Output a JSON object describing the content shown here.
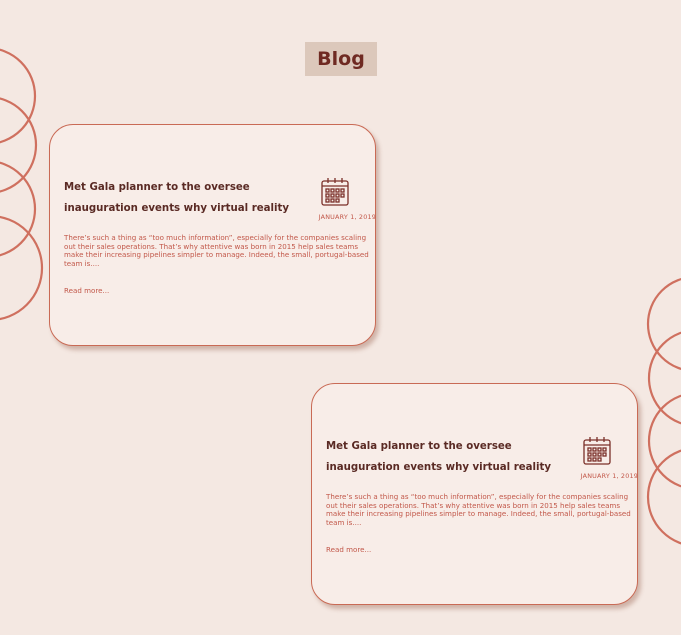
{
  "header": {
    "title": "Blog"
  },
  "posts": [
    {
      "title": "Met Gala planner to the oversee inauguration events why virtual reality",
      "date": "JANUARY 1, 2019",
      "excerpt": "There’s such a thing as “too much information”, especially for the companies scaling out their sales operations. That’s why attentive was born in 2015 help sales teams make their increasing pipelines simpler to manage. Indeed, the small, portugal-based team is....",
      "read_more": "Read more...",
      "icon": "calendar-icon"
    },
    {
      "title": "Met Gala planner to the oversee inauguration events why virtual reality",
      "date": "JANUARY 1, 2019",
      "excerpt": "There’s such a thing as “too much information”, especially for the companies scaling out their sales operations. That’s why attentive was born in 2015 help sales teams make their increasing pipelines simpler to manage. Indeed, the small, portugal-based team is....",
      "read_more": "Read more...",
      "icon": "calendar-icon"
    }
  ],
  "colors": {
    "background": "#f4e8e2",
    "accent": "#c96a55",
    "title_badge": "#dcc8bb",
    "heading_text": "#5a2a24",
    "body_text": "#c2584a"
  }
}
